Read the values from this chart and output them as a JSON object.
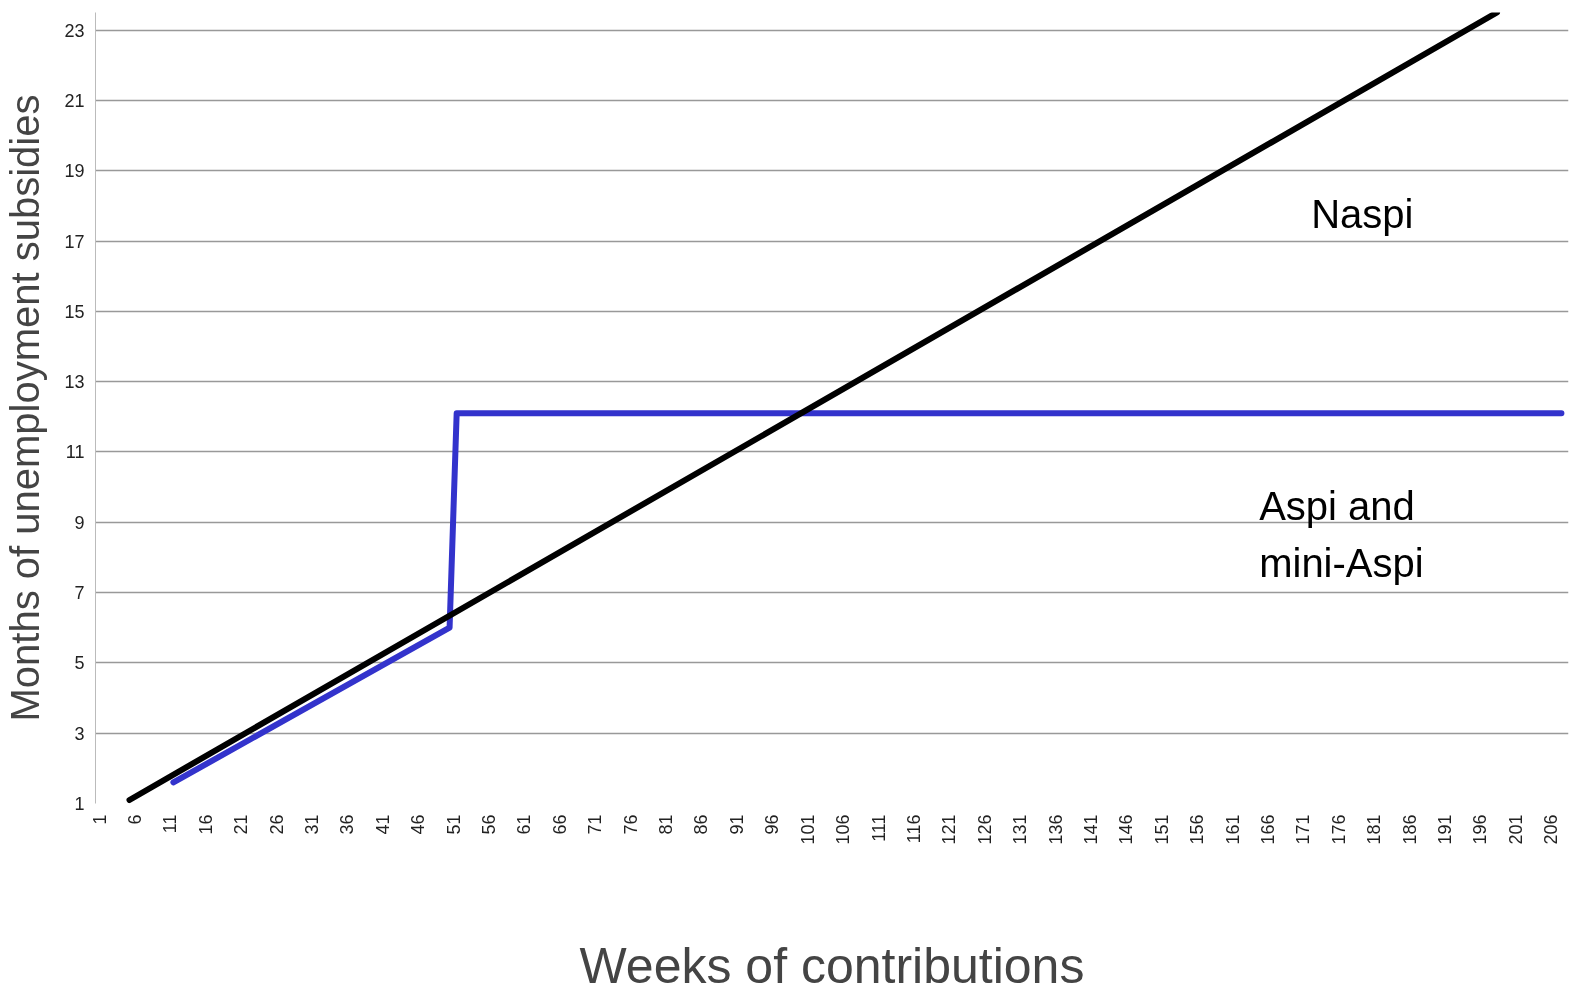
{
  "chart_data": {
    "type": "line",
    "xlabel": "Weeks of contributions",
    "ylabel": "Months of unemployment subsidies",
    "xlim": [
      0.5,
      208.5
    ],
    "ylim": [
      1,
      23.5
    ],
    "xticks": [
      1,
      6,
      11,
      16,
      21,
      26,
      31,
      36,
      41,
      46,
      51,
      56,
      61,
      66,
      71,
      76,
      81,
      86,
      91,
      96,
      101,
      106,
      111,
      116,
      121,
      126,
      131,
      136,
      141,
      146,
      151,
      156,
      161,
      166,
      171,
      176,
      181,
      186,
      191,
      196,
      201,
      206
    ],
    "yticks": [
      1,
      3,
      5,
      7,
      9,
      11,
      13,
      15,
      17,
      19,
      21,
      23
    ],
    "grid": "y",
    "marker": "none",
    "line_style": "solid",
    "series": [
      {
        "name": "Aspi and mini-Aspi",
        "color": "#3333cc",
        "x": [
          11.5,
          50.5,
          51.5,
          207.5
        ],
        "values": [
          1.6,
          6.0,
          12.1,
          12.1
        ]
      },
      {
        "name": "Naspi",
        "color": "#000000",
        "x": [
          5.3,
          198.4
        ],
        "values": [
          1.1,
          23.5
        ]
      }
    ]
  }
}
